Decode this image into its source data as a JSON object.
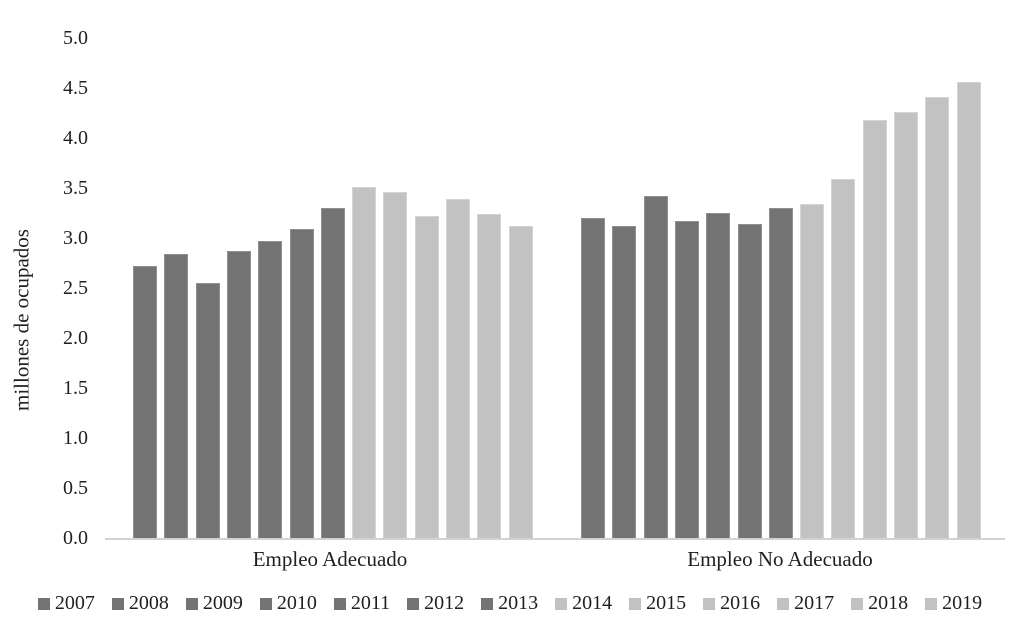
{
  "chart_data": {
    "type": "bar",
    "title": "",
    "xlabel": "",
    "ylabel": "millones de ocupados",
    "ylim": [
      0.0,
      5.0
    ],
    "ytick_step": 0.5,
    "yticks": [
      "0.0",
      "0.5",
      "1.0",
      "1.5",
      "2.0",
      "2.5",
      "3.0",
      "3.5",
      "4.0",
      "4.5",
      "5.0"
    ],
    "grid": false,
    "legend_position": "bottom",
    "categories": [
      "Empleo Adecuado",
      "Empleo No Adecuado"
    ],
    "series": [
      {
        "name": "2007",
        "shade": "dark",
        "values": [
          2.72,
          3.2
        ]
      },
      {
        "name": "2008",
        "shade": "dark",
        "values": [
          2.84,
          3.12
        ]
      },
      {
        "name": "2009",
        "shade": "dark",
        "values": [
          2.55,
          3.42
        ]
      },
      {
        "name": "2010",
        "shade": "dark",
        "values": [
          2.87,
          3.17
        ]
      },
      {
        "name": "2011",
        "shade": "dark",
        "values": [
          2.97,
          3.25
        ]
      },
      {
        "name": "2012",
        "shade": "dark",
        "values": [
          3.09,
          3.14
        ]
      },
      {
        "name": "2013",
        "shade": "dark",
        "values": [
          3.3,
          3.3
        ]
      },
      {
        "name": "2014",
        "shade": "light",
        "values": [
          3.51,
          3.34
        ]
      },
      {
        "name": "2015",
        "shade": "light",
        "values": [
          3.46,
          3.59
        ]
      },
      {
        "name": "2016",
        "shade": "light",
        "values": [
          3.22,
          4.18
        ]
      },
      {
        "name": "2017",
        "shade": "light",
        "values": [
          3.39,
          4.26
        ]
      },
      {
        "name": "2018",
        "shade": "light",
        "values": [
          3.24,
          4.41
        ]
      },
      {
        "name": "2019",
        "shade": "light",
        "values": [
          3.12,
          4.56
        ]
      }
    ],
    "palette": {
      "dark": "#737373",
      "dark_border": "#8f8f8f",
      "light": "#c2c2c2",
      "light_border": "#d4d4d4",
      "axis_line": "#d2d2d2",
      "text": "#1f1f1f"
    }
  }
}
